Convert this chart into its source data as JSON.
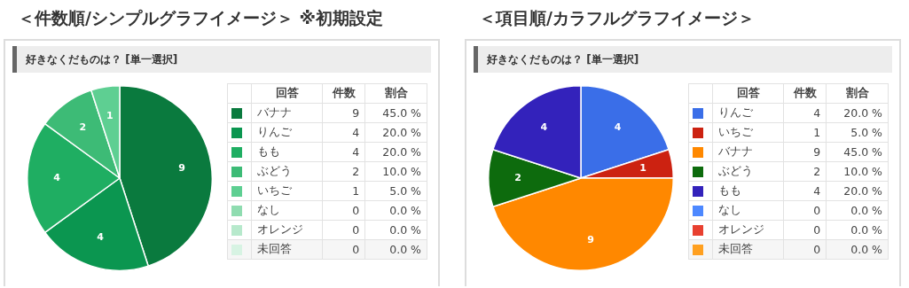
{
  "chart_data": [
    {
      "type": "pie",
      "title": "＜件数順/シンプルグラフイメージ＞ ※初期設定",
      "subtitle": "好きなくだものは？ [単一選択]",
      "categories": [
        "バナナ",
        "りんご",
        "もも",
        "ぶどう",
        "いちご",
        "なし",
        "オレンジ",
        "未回答"
      ],
      "values": [
        9,
        4,
        4,
        2,
        1,
        0,
        0,
        0
      ],
      "value_labels": [
        "9",
        "4",
        "4",
        "2",
        "1",
        null,
        null,
        null
      ],
      "colors": [
        "#0a7a3e",
        "#0b9650",
        "#1fae62",
        "#3dbb76",
        "#5ecf92",
        "#8fdcb0",
        "#b7e9cc",
        "#d7f3e3"
      ],
      "annotations": [
        "回答",
        "件数",
        "割合",
        "9",
        "4",
        "4",
        "2",
        "1",
        "0",
        "0",
        "0",
        "45.0 %",
        "20.0 %",
        "20.0 %",
        "10.0 %",
        "5.0 %",
        "0.0 %",
        "0.0 %",
        "0.0 %"
      ],
      "legend": "right"
    },
    {
      "type": "pie",
      "title": "＜項目順/カラフルグラフイメージ＞",
      "subtitle": "好きなくだものは？ [単一選択]",
      "categories": [
        "りんご",
        "いちご",
        "バナナ",
        "ぶどう",
        "もも",
        "なし",
        "オレンジ",
        "未回答"
      ],
      "values": [
        4,
        1,
        9,
        2,
        4,
        0,
        0,
        0
      ],
      "value_labels": [
        "4",
        "1",
        "9",
        "2",
        "4",
        null,
        null,
        null
      ],
      "colors": [
        "#3a6ee8",
        "#cc2211",
        "#ff8800",
        "#0d6b0d",
        "#3322bb",
        "#4d88ff",
        "#e84030",
        "#ffa020"
      ],
      "annotations": [
        "回答",
        "件数",
        "割合",
        "4",
        "1",
        "9",
        "2",
        "4",
        "0",
        "0",
        "0",
        "20.0 %",
        "5.0 %",
        "45.0 %",
        "10.0 %",
        "20.0 %",
        "0.0 %",
        "0.0 %",
        "0.0 %"
      ],
      "legend": "right"
    }
  ]
}
